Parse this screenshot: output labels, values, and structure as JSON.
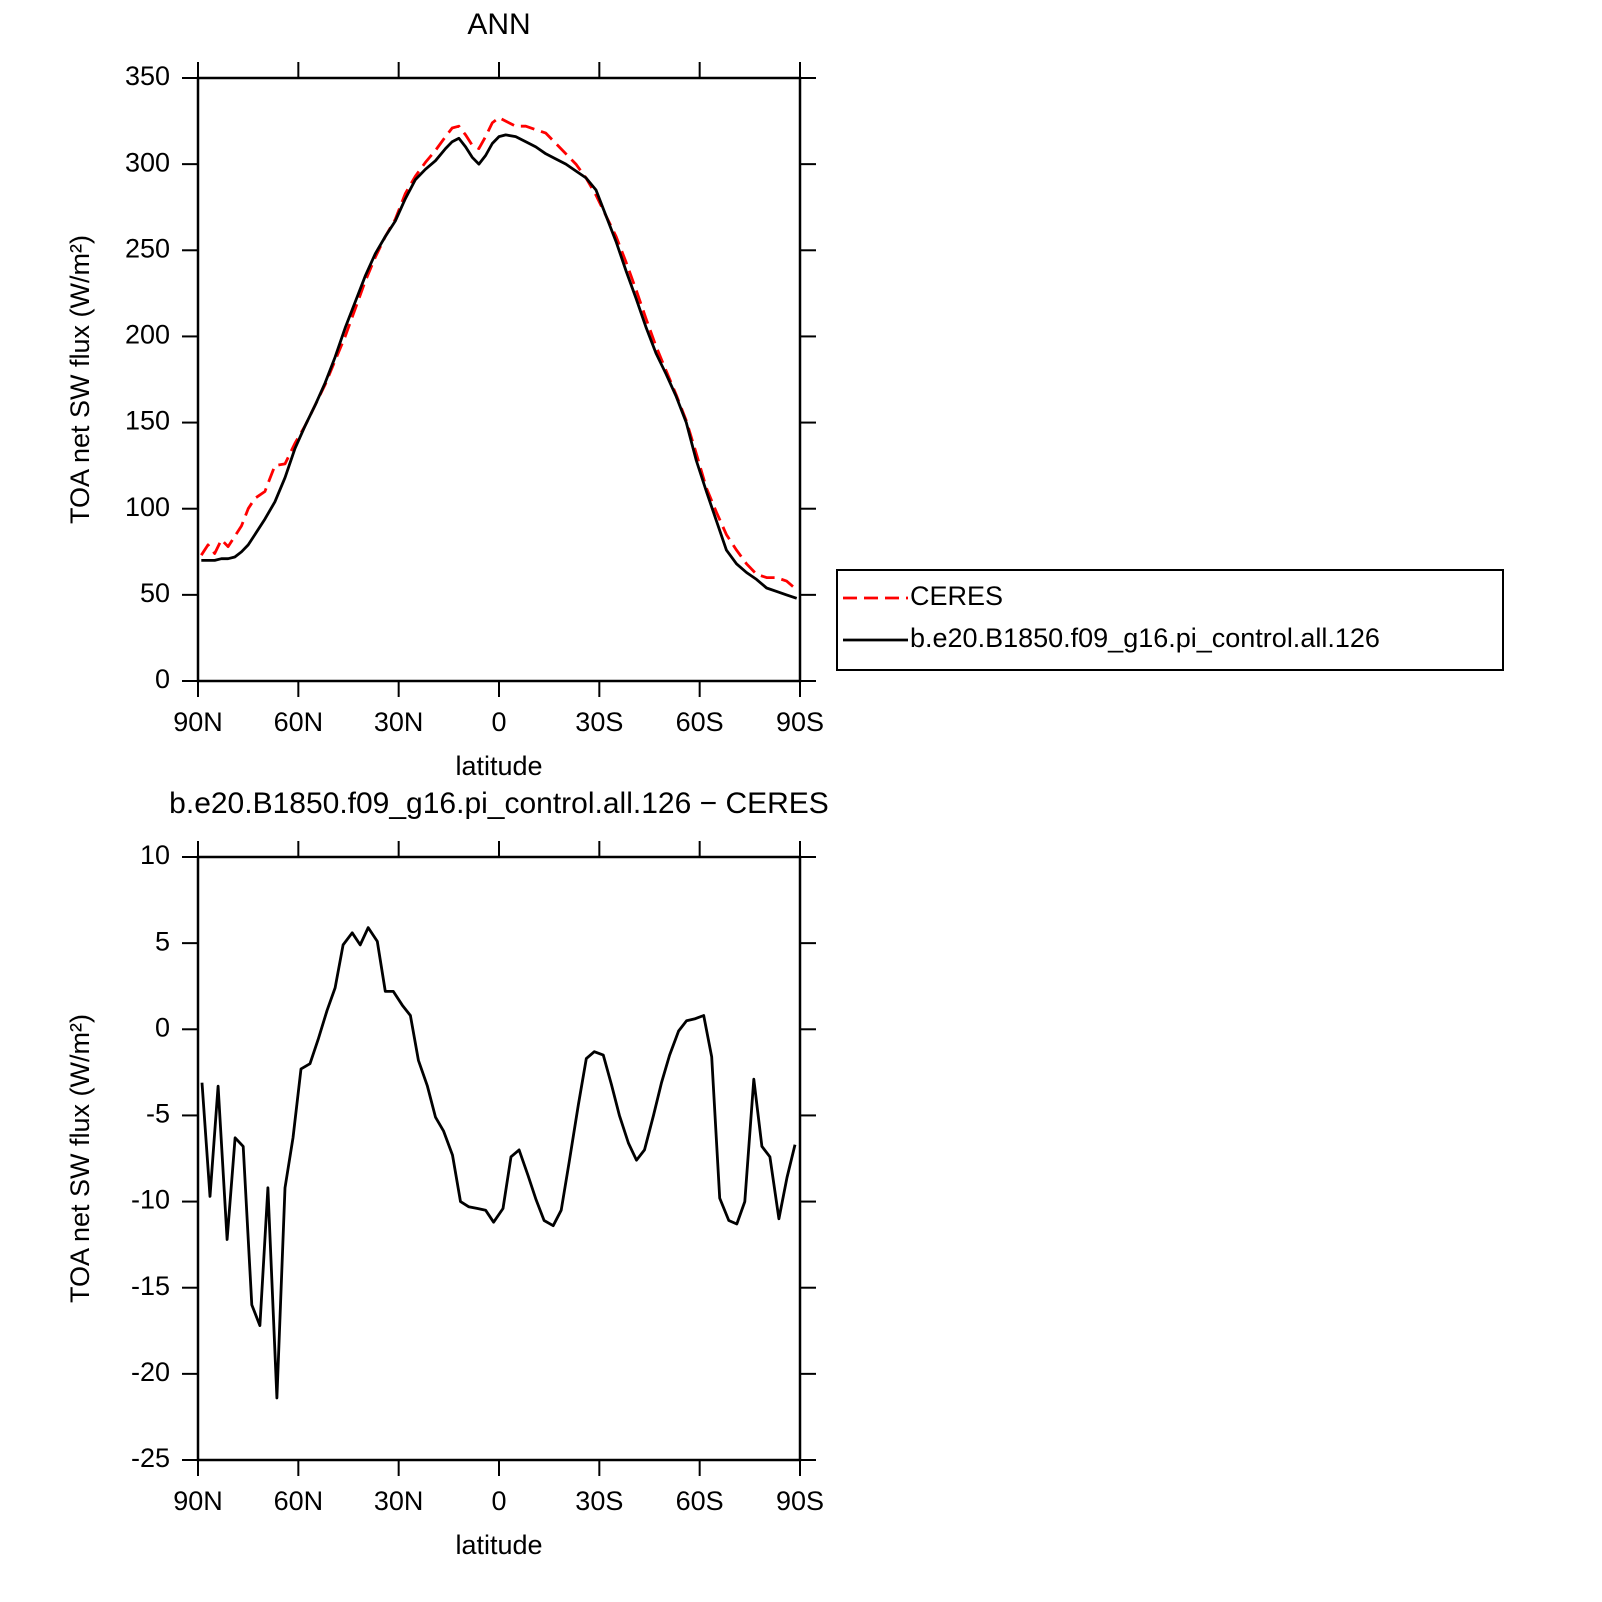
{
  "chart_data": [
    {
      "type": "line",
      "title": "ANN",
      "xlabel": "latitude",
      "ylabel": "TOA net SW flux (W/m²)",
      "x": [
        89,
        87,
        85,
        83,
        81,
        79,
        77,
        75,
        73,
        70,
        67,
        64,
        61,
        58,
        55,
        52,
        49,
        46,
        43,
        40,
        37,
        34,
        31,
        28,
        25,
        22,
        19,
        16,
        14,
        12,
        10,
        8,
        6,
        4,
        2,
        0,
        -2,
        -5,
        -8,
        -11,
        -14,
        -17,
        -20,
        -23,
        -26,
        -29,
        -32,
        -35,
        -38,
        -41,
        -44,
        -47,
        -50,
        -53,
        -56,
        -59,
        -62,
        -65,
        -68,
        -71,
        -74,
        -77,
        -80,
        -83,
        -86,
        -89
      ],
      "series": [
        {
          "name": "CERES",
          "color": "#ff0000",
          "linestyle": "dashed",
          "values": [
            73,
            79,
            74,
            82,
            78,
            84,
            90,
            100,
            106,
            110,
            125,
            126,
            138,
            148,
            160,
            172,
            186,
            200,
            216,
            232,
            246,
            258,
            268,
            283,
            293,
            301,
            308,
            316,
            321,
            322,
            317,
            311,
            309,
            316,
            324,
            327,
            325,
            322,
            322,
            320,
            318,
            312,
            306,
            300,
            292,
            282,
            270,
            258,
            243,
            227,
            210,
            194,
            180,
            166,
            151,
            132,
            112,
            98,
            85,
            76,
            68,
            62,
            60,
            60,
            58,
            53
          ]
        },
        {
          "name": "b.e20.B1850.f09_g16.pi_control.all.126",
          "color": "#000000",
          "linestyle": "solid",
          "values": [
            70,
            70,
            70,
            71,
            71,
            72,
            75,
            79,
            85,
            94,
            104,
            118,
            135,
            148,
            160,
            173,
            188,
            205,
            220,
            235,
            248,
            258,
            267,
            280,
            291,
            297,
            302,
            309,
            313,
            315,
            310,
            304,
            300,
            305,
            312,
            316,
            317,
            316,
            313,
            310,
            306,
            303,
            300,
            296,
            292,
            285,
            270,
            255,
            238,
            222,
            205,
            190,
            178,
            165,
            150,
            128,
            110,
            93,
            76,
            68,
            63,
            59,
            54,
            52,
            50,
            48
          ]
        }
      ],
      "xlim": [
        90,
        -90
      ],
      "xticks": [
        {
          "value": 90,
          "label": "90N"
        },
        {
          "value": 60,
          "label": "60N"
        },
        {
          "value": 30,
          "label": "30N"
        },
        0,
        {
          "value": -30,
          "label": "30S"
        },
        {
          "value": -60,
          "label": "60S"
        },
        {
          "value": -90,
          "label": "90S"
        }
      ],
      "ylim": [
        0,
        350
      ],
      "yticks": [
        0,
        50,
        100,
        150,
        200,
        250,
        300,
        350
      ],
      "legend": "right",
      "grid": false
    },
    {
      "type": "line",
      "title": "b.e20.B1850.f09_g16.pi_control.all.126 − CERES",
      "xlabel": "latitude",
      "ylabel": "TOA net SW flux (W/m²)",
      "x": [
        88.8,
        86.4,
        84,
        81.3,
        78.9,
        76.5,
        73.9,
        71.5,
        69.1,
        66.4,
        64,
        61.6,
        59.2,
        56.5,
        54.1,
        51.4,
        49,
        46.6,
        43.9,
        41.5,
        39.1,
        36.4,
        34,
        31.6,
        28.9,
        26.5,
        24.1,
        21.4,
        19,
        16.6,
        13.9,
        11.5,
        9.1,
        6.4,
        4,
        1.6,
        -1.2,
        -3.6,
        -6,
        -8.7,
        -11.1,
        -13.5,
        -16.2,
        -18.6,
        -21,
        -23.7,
        -26.1,
        -28.5,
        -31.2,
        -33.6,
        -36,
        -38.7,
        -41.1,
        -43.5,
        -46.2,
        -48.6,
        -51,
        -53.7,
        -56.1,
        -58.5,
        -61.2,
        -63.6,
        -66,
        -68.7,
        -71.1,
        -73.5,
        -76.2,
        -78.6,
        -81,
        -83.7,
        -86.1,
        -88.5
      ],
      "color": "#000000",
      "values": [
        -3.1,
        -9.7,
        -3.3,
        -12.2,
        -6.3,
        -6.8,
        -16,
        -17.2,
        -9.2,
        -21.4,
        -9.2,
        -6.3,
        -2.3,
        -2,
        -0.6,
        1.1,
        2.4,
        4.9,
        5.6,
        4.9,
        5.9,
        5.1,
        2.2,
        2.2,
        1.4,
        0.8,
        -1.8,
        -3.3,
        -5.1,
        -5.9,
        -7.3,
        -10,
        -10.3,
        -10.4,
        -10.5,
        -11.2,
        -10.4,
        -7.4,
        -7,
        -8.5,
        -9.9,
        -11.1,
        -11.4,
        -10.5,
        -7.7,
        -4.4,
        -1.7,
        -1.3,
        -1.5,
        -3.2,
        -5,
        -6.6,
        -7.6,
        -7,
        -5,
        -3.1,
        -1.5,
        -0.1,
        0.5,
        0.6,
        0.8,
        -1.6,
        -9.8,
        -11.1,
        -11.3,
        -10,
        -2.9,
        -6.8,
        -7.4,
        -11,
        -8.6,
        -6.7
      ],
      "xlim": [
        90,
        -90
      ],
      "xticks": [
        {
          "value": 90,
          "label": "90N"
        },
        {
          "value": 60,
          "label": "60N"
        },
        {
          "value": 30,
          "label": "30N"
        },
        0,
        {
          "value": -30,
          "label": "30S"
        },
        {
          "value": -60,
          "label": "60S"
        },
        {
          "value": -90,
          "label": "90S"
        }
      ],
      "ylim": [
        -25,
        10
      ],
      "yticks": [
        -25,
        -20,
        -15,
        -10,
        -5,
        0,
        5,
        10
      ],
      "grid": false
    }
  ]
}
